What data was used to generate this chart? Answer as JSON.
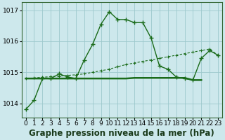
{
  "title": "Graphe pression niveau de la mer (hPa)",
  "hours": [
    0,
    1,
    2,
    3,
    4,
    5,
    6,
    7,
    8,
    9,
    10,
    11,
    12,
    13,
    14,
    15,
    16,
    17,
    18,
    19,
    20,
    21,
    22,
    23
  ],
  "line_main": [
    1013.8,
    1014.1,
    1014.8,
    1014.8,
    1014.95,
    1014.85,
    1014.8,
    1015.4,
    1015.9,
    1016.55,
    1016.95,
    1016.7,
    1016.7,
    1016.6,
    1016.6,
    1016.1,
    1015.2,
    1015.1,
    1014.85,
    1014.8,
    1014.75,
    1015.45,
    1015.7,
    1015.55
  ],
  "line_flat": [
    1014.8,
    1014.8,
    1014.8,
    1014.8,
    1014.8,
    1014.8,
    1014.8,
    1014.8,
    1014.8,
    1014.8,
    1014.8,
    1014.8,
    1014.8,
    1014.82,
    1014.82,
    1014.82,
    1014.82,
    1014.82,
    1014.82,
    1014.82,
    1014.75,
    1014.75,
    null,
    null
  ],
  "line_slope": [
    1014.8,
    1014.82,
    1014.84,
    1014.86,
    1014.88,
    1014.9,
    1014.92,
    1014.95,
    1015.0,
    1015.05,
    1015.1,
    1015.18,
    1015.25,
    1015.3,
    1015.35,
    1015.4,
    1015.45,
    1015.5,
    1015.55,
    1015.6,
    1015.65,
    1015.7,
    1015.75,
    1015.55
  ],
  "bg_color": "#cde8ec",
  "line_color": "#1a6b1a",
  "grid_color": "#9cc8cc",
  "ylim": [
    1013.55,
    1017.25
  ],
  "yticks": [
    1014,
    1015,
    1016,
    1017
  ],
  "title_fontsize": 8.5,
  "tick_fontsize": 6.5
}
